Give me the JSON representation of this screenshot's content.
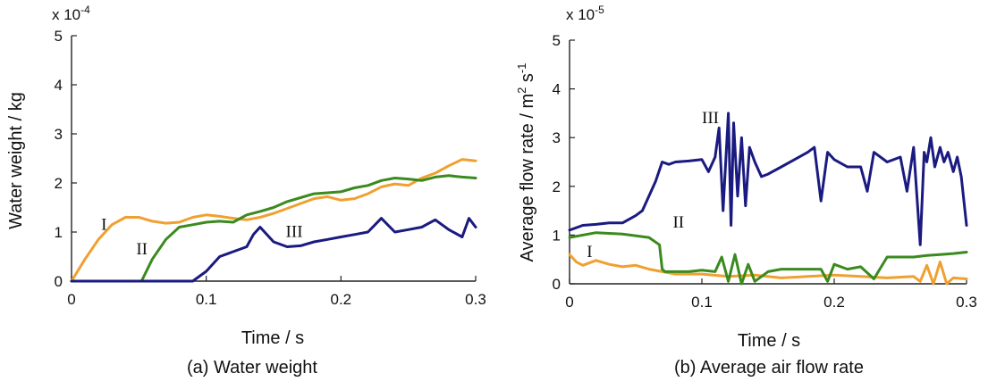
{
  "chart_data": [
    {
      "type": "line",
      "caption": "(a) Water weight",
      "xlabel": "Time / s",
      "ylabel": "Water weight / kg",
      "exponent_prefix": "x 10",
      "exponent_power": "-4",
      "xlim": [
        0,
        0.3
      ],
      "ylim": [
        0,
        5
      ],
      "xticks": [
        "0",
        "0.1",
        "0.2",
        "0.3"
      ],
      "yticks": [
        "0",
        "1",
        "2",
        "3",
        "4",
        "5"
      ],
      "grid": false,
      "series": [
        {
          "name": "I",
          "color": "#f0a030",
          "x": [
            0,
            0.01,
            0.02,
            0.03,
            0.04,
            0.05,
            0.06,
            0.07,
            0.08,
            0.09,
            0.1,
            0.11,
            0.12,
            0.13,
            0.14,
            0.15,
            0.16,
            0.17,
            0.18,
            0.19,
            0.2,
            0.21,
            0.22,
            0.23,
            0.24,
            0.25,
            0.26,
            0.27,
            0.28,
            0.29,
            0.3
          ],
          "y": [
            0,
            0.45,
            0.85,
            1.15,
            1.3,
            1.3,
            1.22,
            1.18,
            1.2,
            1.3,
            1.35,
            1.32,
            1.28,
            1.25,
            1.3,
            1.38,
            1.48,
            1.58,
            1.68,
            1.72,
            1.65,
            1.68,
            1.78,
            1.92,
            1.98,
            1.95,
            2.1,
            2.2,
            2.35,
            2.48,
            2.45
          ]
        },
        {
          "name": "II",
          "color": "#3a8a1e",
          "x": [
            0.052,
            0.06,
            0.07,
            0.08,
            0.09,
            0.1,
            0.11,
            0.12,
            0.13,
            0.14,
            0.15,
            0.16,
            0.17,
            0.18,
            0.19,
            0.2,
            0.21,
            0.22,
            0.23,
            0.24,
            0.25,
            0.26,
            0.27,
            0.28,
            0.29,
            0.3
          ],
          "y": [
            0,
            0.45,
            0.85,
            1.1,
            1.15,
            1.2,
            1.22,
            1.2,
            1.35,
            1.42,
            1.5,
            1.62,
            1.7,
            1.78,
            1.8,
            1.82,
            1.9,
            1.95,
            2.05,
            2.1,
            2.08,
            2.05,
            2.12,
            2.15,
            2.12,
            2.1
          ]
        },
        {
          "name": "III",
          "color": "#1a1a80",
          "x": [
            0.09,
            0.1,
            0.11,
            0.12,
            0.13,
            0.135,
            0.14,
            0.15,
            0.16,
            0.17,
            0.18,
            0.19,
            0.2,
            0.21,
            0.22,
            0.23,
            0.24,
            0.25,
            0.26,
            0.27,
            0.28,
            0.29,
            0.295,
            0.3
          ],
          "y": [
            0,
            0.2,
            0.5,
            0.6,
            0.7,
            0.95,
            1.1,
            0.8,
            0.7,
            0.72,
            0.8,
            0.85,
            0.9,
            0.95,
            1.0,
            1.28,
            1.0,
            1.05,
            1.1,
            1.25,
            1.05,
            0.9,
            1.28,
            1.1
          ]
        }
      ],
      "annotations": [
        {
          "text": "I",
          "x": 0.022,
          "y": 1.05
        },
        {
          "text": "II",
          "x": 0.048,
          "y": 0.55
        },
        {
          "text": "III",
          "x": 0.159,
          "y": 0.9
        }
      ]
    },
    {
      "type": "line",
      "caption": "(b) Average air flow rate",
      "xlabel": "Time / s",
      "ylabel_base": "Average flow rate / m",
      "ylabel_exp1": "2",
      "ylabel_mid": " s",
      "ylabel_exp2": "-1",
      "exponent_prefix": "x 10",
      "exponent_power": "-5",
      "xlim": [
        0,
        0.3
      ],
      "ylim": [
        0,
        5
      ],
      "xticks": [
        "0",
        "0.1",
        "0.2",
        "0.3"
      ],
      "yticks": [
        "0",
        "1",
        "2",
        "3",
        "4",
        "5"
      ],
      "grid": false,
      "series": [
        {
          "name": "I",
          "color": "#f0a030",
          "x": [
            0,
            0.005,
            0.01,
            0.02,
            0.03,
            0.04,
            0.05,
            0.06,
            0.07,
            0.08,
            0.1,
            0.12,
            0.14,
            0.16,
            0.18,
            0.2,
            0.22,
            0.24,
            0.26,
            0.265,
            0.27,
            0.275,
            0.28,
            0.285,
            0.29,
            0.3
          ],
          "y": [
            0.6,
            0.45,
            0.38,
            0.48,
            0.4,
            0.35,
            0.38,
            0.3,
            0.25,
            0.2,
            0.2,
            0.15,
            0.18,
            0.12,
            0.15,
            0.18,
            0.15,
            0.12,
            0.15,
            0.05,
            0.38,
            0.0,
            0.45,
            0.0,
            0.12,
            0.1
          ]
        },
        {
          "name": "II",
          "color": "#3a8a1e",
          "x": [
            0,
            0.02,
            0.04,
            0.06,
            0.068,
            0.07,
            0.072,
            0.08,
            0.09,
            0.1,
            0.11,
            0.115,
            0.12,
            0.125,
            0.13,
            0.135,
            0.14,
            0.15,
            0.16,
            0.17,
            0.18,
            0.19,
            0.195,
            0.2,
            0.21,
            0.22,
            0.23,
            0.24,
            0.25,
            0.26,
            0.27,
            0.28,
            0.29,
            0.3
          ],
          "y": [
            0.95,
            1.05,
            1.02,
            0.95,
            0.8,
            0.3,
            0.25,
            0.25,
            0.25,
            0.28,
            0.25,
            0.55,
            0.05,
            0.6,
            0.0,
            0.4,
            0.05,
            0.25,
            0.3,
            0.3,
            0.3,
            0.3,
            0.05,
            0.4,
            0.3,
            0.35,
            0.1,
            0.55,
            0.55,
            0.55,
            0.58,
            0.6,
            0.62,
            0.65
          ]
        },
        {
          "name": "III",
          "color": "#1a1a80",
          "x": [
            0,
            0.01,
            0.02,
            0.03,
            0.04,
            0.05,
            0.055,
            0.06,
            0.065,
            0.07,
            0.075,
            0.08,
            0.09,
            0.1,
            0.105,
            0.11,
            0.113,
            0.116,
            0.12,
            0.122,
            0.124,
            0.127,
            0.13,
            0.133,
            0.136,
            0.14,
            0.145,
            0.15,
            0.16,
            0.17,
            0.18,
            0.185,
            0.19,
            0.195,
            0.2,
            0.21,
            0.22,
            0.225,
            0.23,
            0.24,
            0.25,
            0.255,
            0.26,
            0.265,
            0.268,
            0.27,
            0.273,
            0.276,
            0.28,
            0.283,
            0.286,
            0.29,
            0.293,
            0.296,
            0.3
          ],
          "y": [
            1.1,
            1.2,
            1.22,
            1.25,
            1.25,
            1.4,
            1.5,
            1.8,
            2.1,
            2.5,
            2.45,
            2.5,
            2.52,
            2.55,
            2.3,
            2.6,
            3.2,
            1.5,
            3.5,
            1.2,
            3.3,
            1.8,
            3.0,
            1.6,
            2.8,
            2.5,
            2.2,
            2.25,
            2.4,
            2.55,
            2.7,
            2.8,
            1.7,
            2.7,
            2.55,
            2.4,
            2.4,
            1.9,
            2.7,
            2.5,
            2.6,
            1.9,
            2.8,
            0.8,
            2.7,
            2.5,
            3.0,
            2.4,
            2.8,
            2.5,
            2.7,
            2.3,
            2.6,
            2.2,
            1.2
          ]
        }
      ],
      "annotations": [
        {
          "text": "I",
          "x": 0.013,
          "y": 0.55
        },
        {
          "text": "II",
          "x": 0.078,
          "y": 1.15
        },
        {
          "text": "III",
          "x": 0.1,
          "y": 3.3
        }
      ]
    }
  ]
}
